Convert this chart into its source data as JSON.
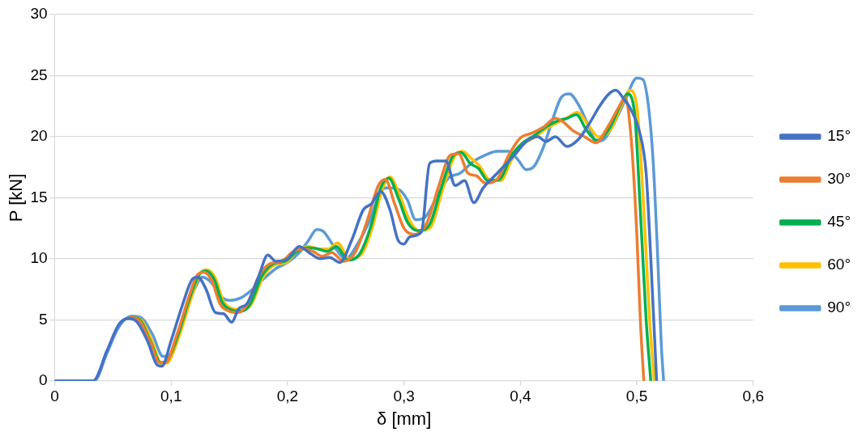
{
  "chart_data": {
    "type": "line",
    "xlabel": "δ [mm]",
    "ylabel": "P [kN]",
    "xlim": [
      0,
      0.6
    ],
    "ylim": [
      0,
      30
    ],
    "xticks": [
      0,
      {
        "value": 0.1,
        "label": "0,1"
      },
      {
        "value": 0.2,
        "label": "0,2"
      },
      {
        "value": 0.3,
        "label": "0,3"
      },
      {
        "value": 0.4,
        "label": "0,4"
      },
      {
        "value": 0.5,
        "label": "0,5"
      },
      {
        "value": 0.6,
        "label": "0,6"
      }
    ],
    "yticks": [
      0,
      5,
      10,
      15,
      20,
      25,
      30
    ],
    "grid": "y",
    "legend": "right",
    "marker": "none",
    "line_style": "solid",
    "series": [
      {
        "name": "15°",
        "color": "#4472c4",
        "x": [
          0,
          0.033,
          0.045,
          0.055,
          0.063,
          0.07,
          0.08,
          0.088,
          0.092,
          0.1,
          0.11,
          0.118,
          0.123,
          0.13,
          0.138,
          0.145,
          0.152,
          0.158,
          0.165,
          0.175,
          0.183,
          0.19,
          0.2,
          0.21,
          0.22,
          0.228,
          0.236,
          0.245,
          0.255,
          0.265,
          0.272,
          0.28,
          0.288,
          0.295,
          0.3,
          0.305,
          0.315,
          0.322,
          0.328,
          0.336,
          0.344,
          0.352,
          0.36,
          0.368,
          0.38,
          0.395,
          0.405,
          0.415,
          0.422,
          0.43,
          0.44,
          0.45,
          0.46,
          0.468,
          0.476,
          0.482,
          0.488,
          0.495,
          0.502,
          0.508,
          0.512,
          0.517
        ],
        "values": [
          0,
          0,
          2.5,
          4.6,
          5.1,
          4.9,
          3.2,
          1.3,
          1.2,
          3.3,
          6.3,
          8.3,
          8.5,
          7.5,
          5.6,
          5.5,
          4.8,
          5.9,
          6.3,
          8.5,
          10.3,
          9.8,
          10,
          11,
          10.4,
          10,
          10.1,
          9.7,
          11.5,
          14,
          14.5,
          15.5,
          14,
          11.5,
          11.2,
          11.8,
          12.2,
          17.8,
          18,
          18,
          16,
          16.4,
          14.6,
          15.8,
          17,
          18.5,
          19.6,
          20,
          19.6,
          20,
          19.2,
          19.8,
          21.2,
          22.5,
          23.5,
          23.8,
          23.2,
          22.2,
          20.5,
          17,
          10,
          0
        ]
      },
      {
        "name": "30°",
        "color": "#ed7d31",
        "x": [
          0.065,
          0.072,
          0.082,
          0.09,
          0.095,
          0.105,
          0.115,
          0.122,
          0.128,
          0.135,
          0.142,
          0.15,
          0.158,
          0.165,
          0.175,
          0.185,
          0.195,
          0.205,
          0.215,
          0.222,
          0.23,
          0.238,
          0.248,
          0.258,
          0.268,
          0.278,
          0.284,
          0.292,
          0.3,
          0.31,
          0.32,
          0.33,
          0.34,
          0.347,
          0.355,
          0.362,
          0.37,
          0.38,
          0.39,
          0.4,
          0.41,
          0.42,
          0.43,
          0.437,
          0.445,
          0.455,
          0.465,
          0.475,
          0.485,
          0.49,
          0.495,
          0.5,
          0.503,
          0.506
        ],
        "values": [
          5.2,
          5,
          3.2,
          1.5,
          1.5,
          3.8,
          6.8,
          8.6,
          8.9,
          8.2,
          6.3,
          5.7,
          5.6,
          6.2,
          8.5,
          9.6,
          9.8,
          10.6,
          10.8,
          10.6,
          10.2,
          10.5,
          9.8,
          10.5,
          13,
          16,
          16.5,
          14.5,
          12.5,
          12,
          13,
          16,
          18.5,
          18.6,
          17,
          16.8,
          16.2,
          16.5,
          18.5,
          19.9,
          20.3,
          20.8,
          21.5,
          21.2,
          20.5,
          20,
          19.5,
          20.8,
          22.5,
          23.2,
          20,
          12,
          5,
          0
        ]
      },
      {
        "name": "45°",
        "color": "#00b050",
        "x": [
          0.065,
          0.072,
          0.082,
          0.091,
          0.096,
          0.106,
          0.116,
          0.124,
          0.13,
          0.137,
          0.144,
          0.152,
          0.16,
          0.168,
          0.178,
          0.188,
          0.198,
          0.208,
          0.218,
          0.226,
          0.234,
          0.242,
          0.252,
          0.262,
          0.272,
          0.28,
          0.287,
          0.295,
          0.303,
          0.312,
          0.322,
          0.332,
          0.342,
          0.349,
          0.357,
          0.364,
          0.372,
          0.382,
          0.392,
          0.402,
          0.412,
          0.422,
          0.432,
          0.44,
          0.448,
          0.457,
          0.466,
          0.476,
          0.486,
          0.492,
          0.498,
          0.503,
          0.508,
          0.512
        ],
        "values": [
          5.2,
          5.1,
          3.3,
          1.5,
          1.6,
          3.8,
          6.8,
          8.7,
          9,
          8.3,
          6.4,
          5.8,
          5.7,
          6.3,
          8.6,
          9.6,
          9.8,
          10.6,
          10.9,
          10.8,
          10.6,
          11,
          9.9,
          10.4,
          12.8,
          15.8,
          16.6,
          15,
          13,
          12.3,
          12.8,
          15.8,
          18.4,
          18.7,
          17.8,
          17.4,
          16.4,
          16.5,
          18.4,
          19.5,
          20.1,
          20.8,
          21.3,
          21.5,
          21.8,
          20.5,
          19.7,
          20.6,
          22.6,
          23.5,
          22,
          14,
          5,
          0
        ]
      },
      {
        "name": "60°",
        "color": "#ffc000",
        "x": [
          0.066,
          0.073,
          0.083,
          0.092,
          0.097,
          0.107,
          0.117,
          0.125,
          0.131,
          0.138,
          0.145,
          0.153,
          0.161,
          0.169,
          0.179,
          0.189,
          0.199,
          0.209,
          0.219,
          0.227,
          0.235,
          0.243,
          0.253,
          0.263,
          0.273,
          0.281,
          0.288,
          0.296,
          0.304,
          0.313,
          0.323,
          0.333,
          0.343,
          0.35,
          0.358,
          0.365,
          0.373,
          0.383,
          0.393,
          0.403,
          0.413,
          0.423,
          0.433,
          0.441,
          0.449,
          0.458,
          0.467,
          0.477,
          0.487,
          0.494,
          0.5,
          0.506,
          0.511,
          0.515
        ],
        "values": [
          5.2,
          5.1,
          3.4,
          1.4,
          1.5,
          3.7,
          6.7,
          8.8,
          9.1,
          8.4,
          6.5,
          5.9,
          5.8,
          6.3,
          8.5,
          9.5,
          9.7,
          10.7,
          11,
          10.8,
          10.8,
          11.3,
          10,
          10.3,
          12.6,
          15.6,
          16.7,
          15.3,
          13.3,
          12.3,
          12.6,
          15.6,
          18.3,
          18.8,
          18.2,
          17.6,
          16.5,
          16.4,
          18.2,
          19.4,
          20,
          20.7,
          21.2,
          21.6,
          22,
          21,
          20,
          20.5,
          22.6,
          23.8,
          22.5,
          14,
          5,
          0
        ]
      },
      {
        "name": "90°",
        "color": "#5b9bd5",
        "x": [
          0,
          0.034,
          0.045,
          0.055,
          0.066,
          0.074,
          0.084,
          0.093,
          0.1,
          0.11,
          0.12,
          0.127,
          0.135,
          0.143,
          0.15,
          0.16,
          0.17,
          0.18,
          0.19,
          0.2,
          0.21,
          0.218,
          0.225,
          0.23,
          0.24,
          0.25,
          0.26,
          0.27,
          0.28,
          0.285,
          0.295,
          0.303,
          0.31,
          0.318,
          0.328,
          0.338,
          0.348,
          0.36,
          0.37,
          0.38,
          0.39,
          0.398,
          0.405,
          0.412,
          0.42,
          0.428,
          0.435,
          0.442,
          0.45,
          0.458,
          0.465,
          0.472,
          0.48,
          0.49,
          0.5,
          0.505,
          0.51,
          0.514,
          0.518,
          0.521,
          0.523
        ],
        "values": [
          0,
          0,
          2.3,
          4.4,
          5.3,
          5.2,
          3.8,
          2,
          2.2,
          5,
          7.5,
          8.5,
          8,
          6.9,
          6.6,
          6.8,
          7.5,
          8.4,
          9.2,
          9.7,
          10.5,
          11.5,
          12.4,
          12.3,
          11,
          10,
          11.2,
          13,
          15.5,
          15.8,
          15.7,
          14.8,
          13.2,
          13.4,
          15,
          16.6,
          17,
          18,
          18.5,
          18.8,
          18.8,
          18.1,
          17.3,
          17.6,
          19.2,
          21.5,
          23.2,
          23.5,
          22.6,
          21,
          19.6,
          19.8,
          21,
          23,
          24.8,
          24.7,
          22.5,
          18,
          10,
          3,
          0
        ]
      }
    ]
  }
}
